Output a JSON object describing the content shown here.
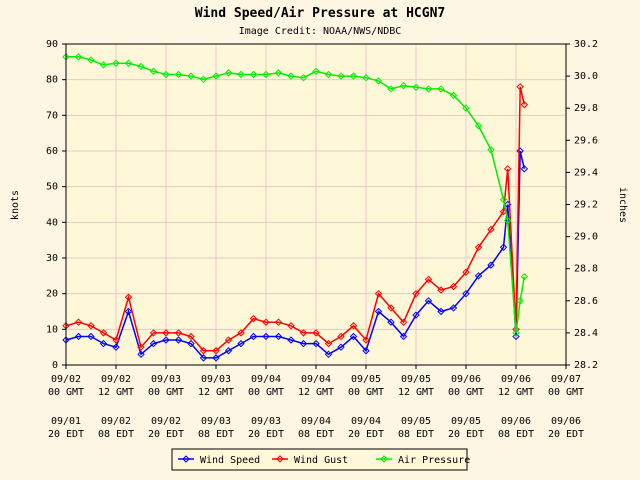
{
  "chart_data": {
    "type": "line",
    "title": "Wind Speed/Air Pressure at HCGN7",
    "subtitle": "Image Credit: NOAA/NWS/NDBC",
    "ylabel": "knots",
    "y2label": "inches",
    "x": [
      "09/02 00",
      "09/02 03",
      "09/02 06",
      "09/02 09",
      "09/02 12",
      "09/02 15",
      "09/02 18",
      "09/02 21",
      "09/03 00",
      "09/03 03",
      "09/03 06",
      "09/03 09",
      "09/03 12",
      "09/03 15",
      "09/03 18",
      "09/03 21",
      "09/04 00",
      "09/04 03",
      "09/04 06",
      "09/04 09",
      "09/04 12",
      "09/04 15",
      "09/04 18",
      "09/04 21",
      "09/05 00",
      "09/05 03",
      "09/05 06",
      "09/05 09",
      "09/05 12",
      "09/05 15",
      "09/05 18",
      "09/05 21",
      "09/06 00",
      "09/06 03",
      "09/06 06",
      "09/06 09",
      "09/06 10",
      "09/06 12",
      "09/06 13",
      "09/06 14"
    ],
    "series": [
      {
        "name": "Wind Speed",
        "color": "#0000ff",
        "values": [
          7,
          8,
          8,
          6,
          5,
          15,
          3,
          6,
          7,
          7,
          6,
          2,
          2,
          4,
          6,
          8,
          8,
          8,
          7,
          6,
          6,
          3,
          5,
          8,
          4,
          15,
          12,
          8,
          14,
          18,
          15,
          16,
          20,
          25,
          28,
          33,
          45,
          8,
          60,
          55
        ]
      },
      {
        "name": "Wind Gust",
        "color": "#ff0000",
        "values": [
          11,
          12,
          11,
          9,
          7,
          19,
          5,
          9,
          9,
          9,
          8,
          4,
          4,
          7,
          9,
          13,
          12,
          12,
          11,
          9,
          9,
          6,
          8,
          11,
          7,
          20,
          16,
          12,
          20,
          24,
          21,
          22,
          26,
          33,
          38,
          43,
          55,
          10,
          78,
          73
        ]
      },
      {
        "name": "Air Pressure",
        "color": "#00ee00",
        "axis": "y2",
        "values": [
          30.12,
          30.12,
          30.1,
          30.07,
          30.08,
          30.08,
          30.06,
          30.03,
          30.01,
          30.01,
          30.0,
          29.98,
          30.0,
          30.02,
          30.01,
          30.01,
          30.01,
          30.02,
          30.0,
          29.99,
          30.03,
          30.01,
          30.0,
          30.0,
          29.99,
          29.97,
          29.92,
          29.94,
          29.93,
          29.92,
          29.92,
          29.88,
          29.8,
          29.69,
          29.54,
          29.23,
          29.1,
          28.4,
          28.6,
          28.75
        ]
      }
    ],
    "xlim": [
      "09/02 00",
      "09/07 00"
    ],
    "xticks": [
      {
        "value": "09/02 00",
        "label": [
          "09/02",
          "00 GMT"
        ]
      },
      {
        "value": "09/02 12",
        "label": [
          "09/02",
          "12 GMT"
        ]
      },
      {
        "value": "09/03 00",
        "label": [
          "09/03",
          "00 GMT"
        ]
      },
      {
        "value": "09/03 12",
        "label": [
          "09/03",
          "12 GMT"
        ]
      },
      {
        "value": "09/04 00",
        "label": [
          "09/04",
          "00 GMT"
        ]
      },
      {
        "value": "09/04 12",
        "label": [
          "09/04",
          "12 GMT"
        ]
      },
      {
        "value": "09/05 00",
        "label": [
          "09/05",
          "00 GMT"
        ]
      },
      {
        "value": "09/05 12",
        "label": [
          "09/05",
          "12 GMT"
        ]
      },
      {
        "value": "09/06 00",
        "label": [
          "09/06",
          "00 GMT"
        ]
      },
      {
        "value": "09/06 12",
        "label": [
          "09/06",
          "12 GMT"
        ]
      },
      {
        "value": "09/07 00",
        "label": [
          "09/07",
          "00 GMT"
        ]
      }
    ],
    "local_tick_labels": [
      [
        "09/01",
        "20 EDT"
      ],
      [
        "09/02",
        "08 EDT"
      ],
      [
        "09/02",
        "20 EDT"
      ],
      [
        "09/03",
        "08 EDT"
      ],
      [
        "09/03",
        "20 EDT"
      ],
      [
        "09/04",
        "08 EDT"
      ],
      [
        "09/04",
        "20 EDT"
      ],
      [
        "09/05",
        "08 EDT"
      ],
      [
        "09/05",
        "20 EDT"
      ],
      [
        "09/06",
        "08 EDT"
      ],
      [
        "09/06",
        "20 EDT"
      ]
    ],
    "ylim": [
      0,
      90
    ],
    "yticks": [
      0,
      10,
      20,
      30,
      40,
      50,
      60,
      70,
      80,
      90
    ],
    "y2lim": [
      28.2,
      30.2
    ],
    "y2ticks": [
      28.2,
      28.4,
      28.6,
      28.8,
      {
        "value": 29,
        "label": "29.0"
      },
      29.2,
      29.4,
      29.6,
      29.8,
      {
        "value": 30,
        "label": "30.0"
      },
      30.2
    ],
    "grid": true,
    "legend": "bottom"
  }
}
